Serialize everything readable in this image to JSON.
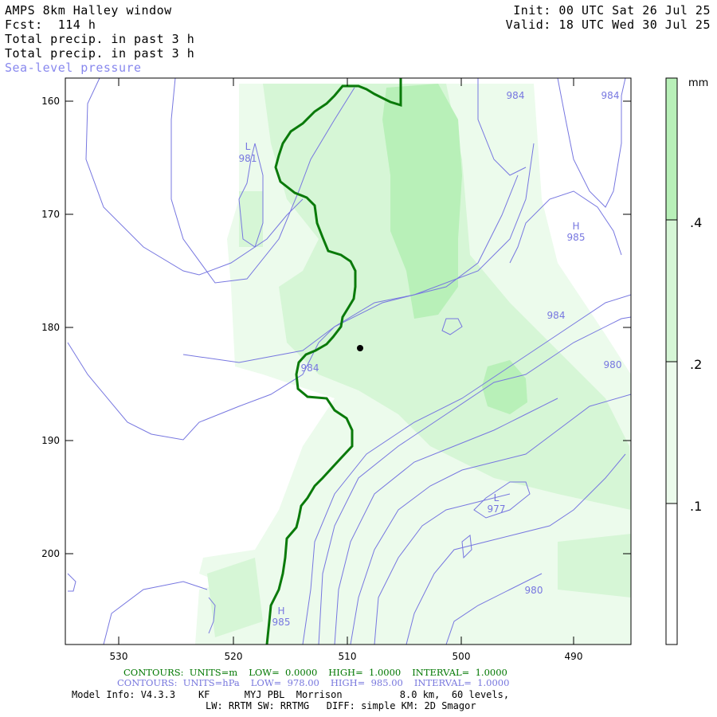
{
  "header": {
    "model": "AMPS 8km Halley window",
    "fcst": "Fcst:  114 h",
    "field1": "Total precip. in past 3 h",
    "field2": "Total precip. in past 3 h",
    "field3": "Sea-level pressure",
    "init": "Init: 00 UTC Sat 26 Jul 25",
    "valid": "Valid: 18 UTC Wed 30 Jul 25"
  },
  "axes": {
    "y_ticks": [
      "160",
      "170",
      "180",
      "190",
      "200"
    ],
    "x_ticks": [
      "530",
      "520",
      "510",
      "500",
      "490"
    ]
  },
  "colorbar": {
    "unit": "mm",
    "levels": [
      ".4",
      ".2",
      ".1"
    ],
    "colors": [
      "#b8f0b8",
      "#d6f6d6",
      "#ecfbec",
      "#ffffff"
    ]
  },
  "pressure_labels": [
    {
      "text": "L"
    },
    {
      "text": "981"
    },
    {
      "text": "H"
    },
    {
      "text": "985"
    },
    {
      "text": "984"
    },
    {
      "text": "984"
    },
    {
      "text": "984"
    },
    {
      "text": "984"
    },
    {
      "text": "980"
    },
    {
      "text": "980"
    },
    {
      "text": "L"
    },
    {
      "text": "977"
    },
    {
      "text": "H"
    },
    {
      "text": "985"
    }
  ],
  "footer": {
    "green": [
      "CONTOURS:  UNITS=m",
      "LOW=  0.0000",
      "HIGH=  1.0000",
      "INTERVAL=  1.0000"
    ],
    "blue": [
      "CONTOURS:  UNITS=hPa",
      "LOW=  978.00",
      "HIGH=  985.00",
      "INTERVAL=  1.0000"
    ],
    "info1": "Model Info: V4.3.3    KF      MYJ PBL  Morrison          8.0 km,  60 levels,",
    "info2": "LW: RRTM SW: RRTMG   DIFF: simple KM: 2D Smagor"
  },
  "colors": {
    "coast": "#0a7a0a",
    "isobar": "#7777e0",
    "precip_light": "#ecfbec",
    "precip_mid": "#d6f6d6",
    "precip_high": "#b8f0b8"
  }
}
